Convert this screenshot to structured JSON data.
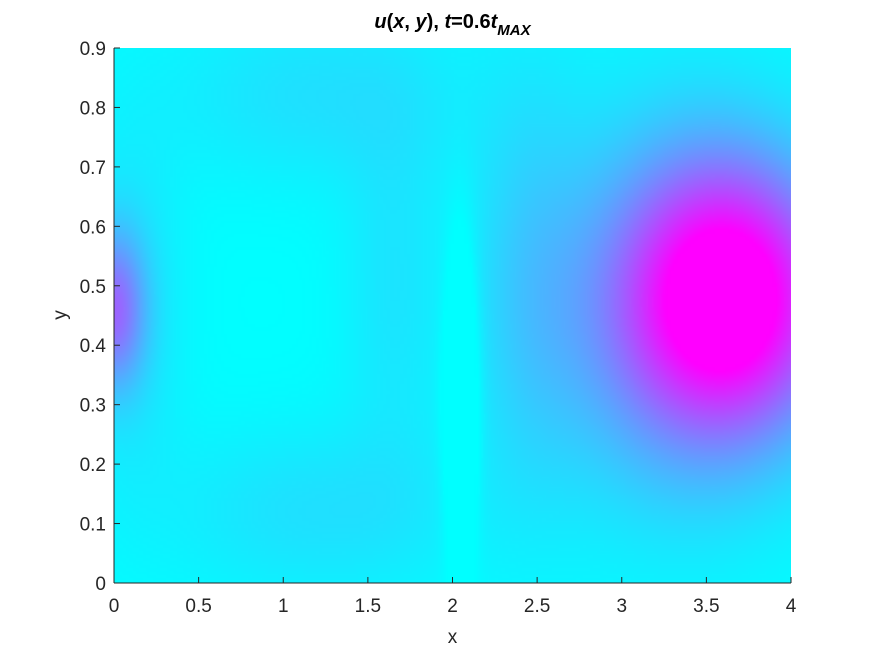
{
  "chart_data": {
    "type": "heatmap",
    "title": {
      "parts": [
        {
          "text": "u",
          "style": "italic"
        },
        {
          "text": "(",
          "style": "plain"
        },
        {
          "text": "x",
          "style": "italic"
        },
        {
          "text": ", ",
          "style": "plain"
        },
        {
          "text": "y",
          "style": "italic"
        },
        {
          "text": "), ",
          "style": "plain"
        },
        {
          "text": "t",
          "style": "italic"
        },
        {
          "text": "=0.6",
          "style": "plain"
        },
        {
          "text": "t",
          "style": "italic"
        }
      ],
      "subscript": "MAX"
    },
    "xlabel": "x",
    "ylabel": "y",
    "xlim": [
      0,
      4
    ],
    "ylim": [
      0,
      0.9
    ],
    "xticks": [
      0,
      0.5,
      1,
      1.5,
      2,
      2.5,
      3,
      3.5,
      4
    ],
    "xtick_labels": [
      "0",
      "0.5",
      "1",
      "1.5",
      "2",
      "2.5",
      "3",
      "3.5",
      "4"
    ],
    "yticks": [
      0,
      0.1,
      0.2,
      0.3,
      0.4,
      0.5,
      0.6,
      0.7,
      0.8,
      0.9
    ],
    "ytick_labels": [
      "0",
      "0.1",
      "0.2",
      "0.3",
      "0.4",
      "0.5",
      "0.6",
      "0.7",
      "0.8",
      "0.9"
    ],
    "colormap": "cool",
    "colormap_low": "#00ffff",
    "colormap_high": "#ff00ff",
    "grid": false,
    "features": [
      {
        "kind": "blob",
        "x": 3.65,
        "y": 0.48,
        "sx": 0.6,
        "sy": 0.22,
        "amp": 1.0
      },
      {
        "kind": "blob",
        "x": 3.3,
        "y": 0.45,
        "sx": 0.75,
        "sy": 0.32,
        "amp": 0.35
      },
      {
        "kind": "blob",
        "x": 0.0,
        "y": 0.46,
        "sx": 0.18,
        "sy": 0.13,
        "amp": 0.5
      },
      {
        "kind": "blob",
        "x": 0.1,
        "y": 0.46,
        "sx": 0.3,
        "sy": 0.28,
        "amp": 0.12
      },
      {
        "kind": "blob",
        "x": 1.2,
        "y": 0.82,
        "sx": 0.9,
        "sy": 0.15,
        "amp": 0.12
      },
      {
        "kind": "blob",
        "x": 1.2,
        "y": 0.12,
        "sx": 0.9,
        "sy": 0.15,
        "amp": 0.12
      },
      {
        "kind": "blob",
        "x": 2.45,
        "y": 0.5,
        "sx": 0.35,
        "sy": 0.35,
        "amp": 0.15
      },
      {
        "kind": "blob",
        "x": 1.65,
        "y": 0.5,
        "sx": 0.3,
        "sy": 0.3,
        "amp": 0.1
      },
      {
        "kind": "blob",
        "x": 2.05,
        "y": 0.3,
        "sx": 0.09,
        "sy": 0.25,
        "amp": -0.35
      }
    ]
  }
}
